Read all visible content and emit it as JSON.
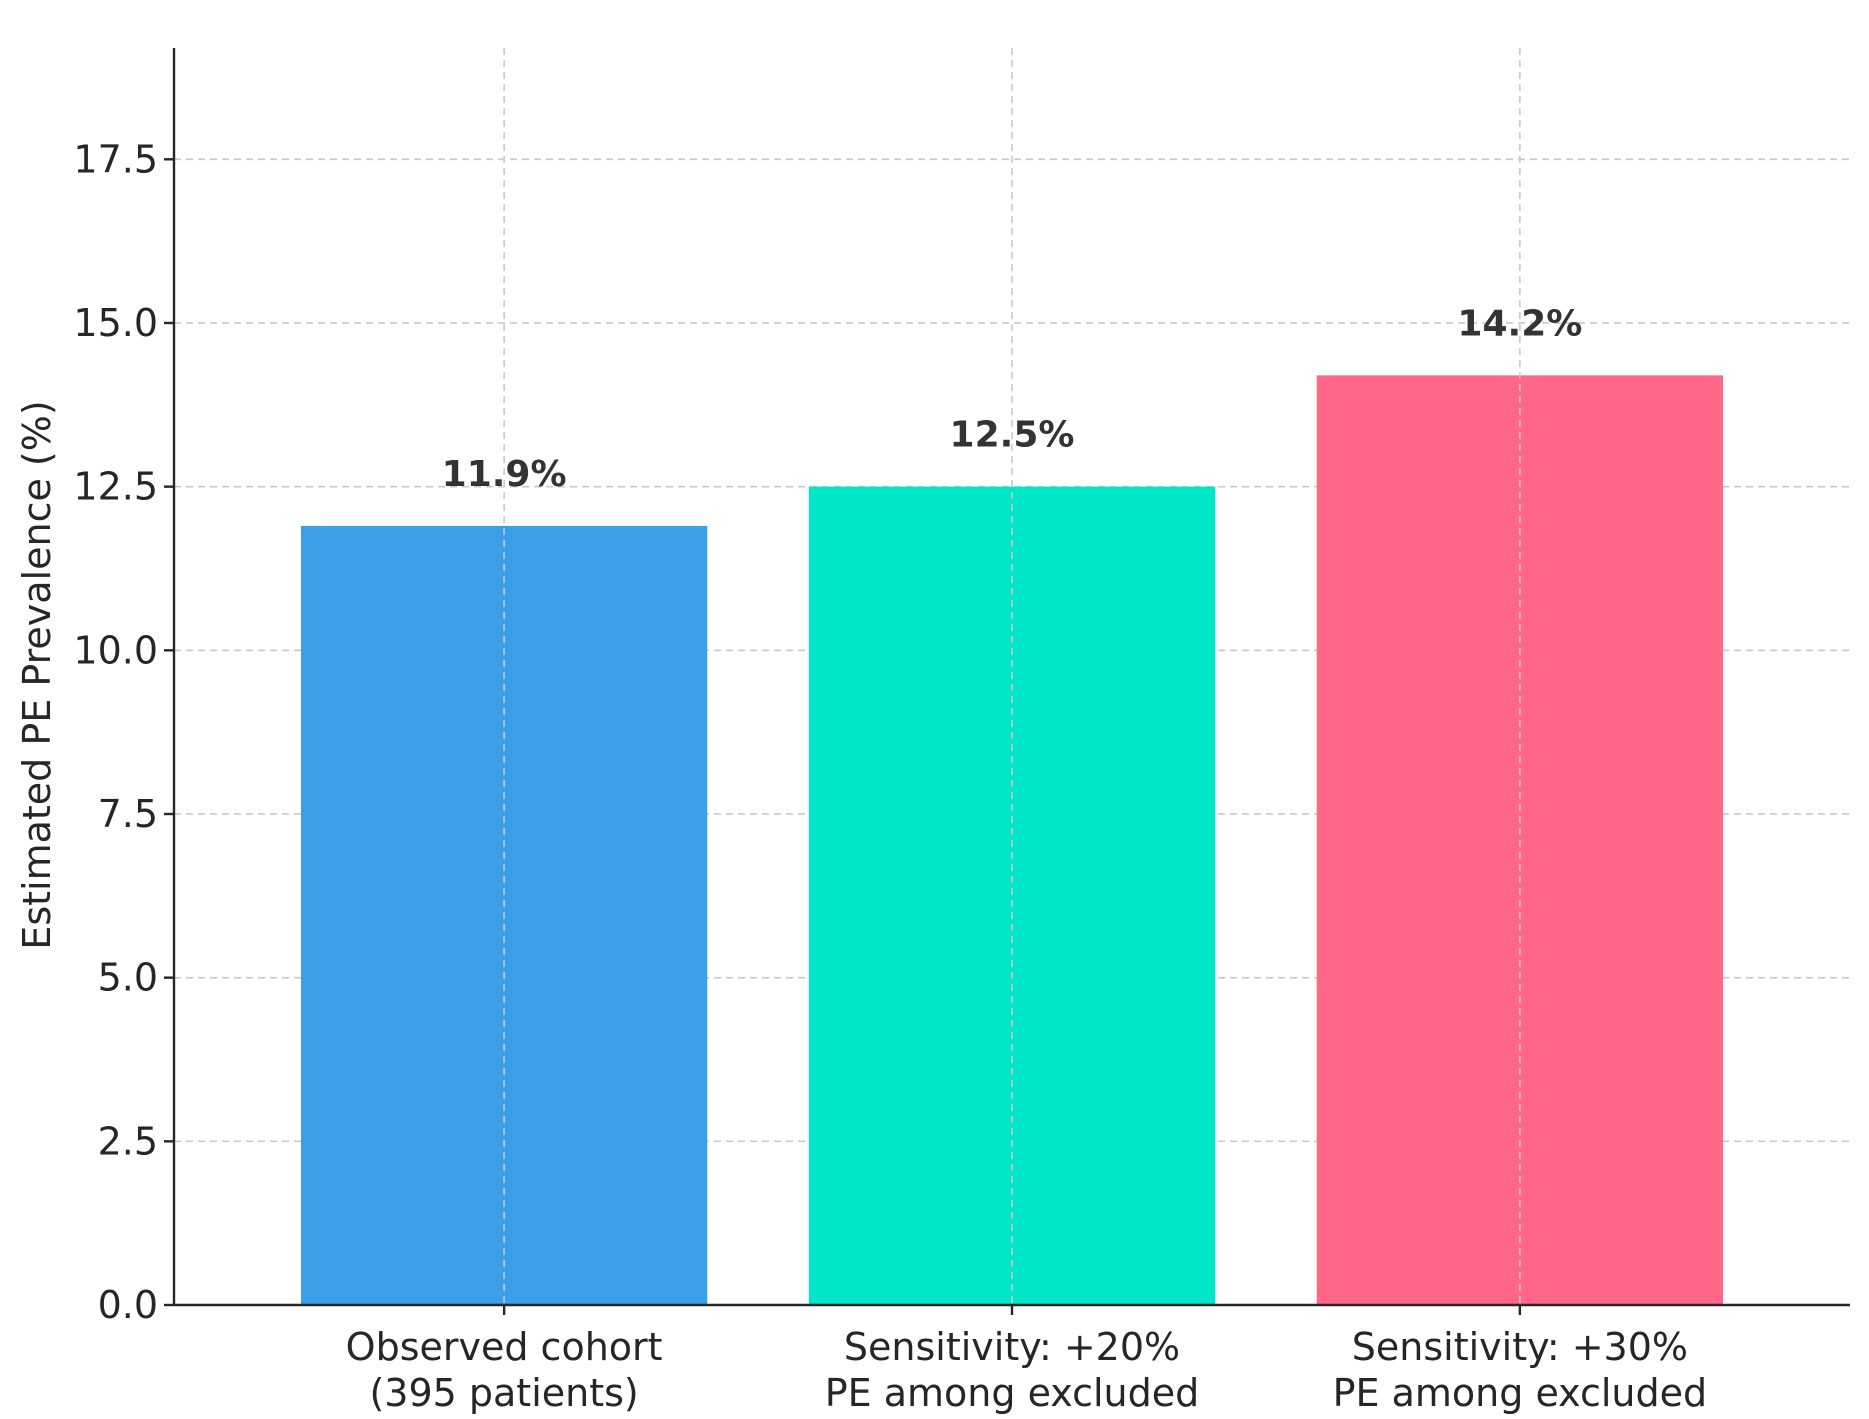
{
  "chart_data": {
    "type": "bar",
    "categories": [
      [
        "Observed cohort",
        "(395 patients)"
      ],
      [
        "Sensitivity: +20%",
        "PE among excluded"
      ],
      [
        "Sensitivity: +30%",
        "PE among excluded"
      ]
    ],
    "values": [
      11.9,
      12.5,
      14.2
    ],
    "value_labels": [
      "11.9%",
      "12.5%",
      "14.2%"
    ],
    "colors": [
      "#3a9fe6",
      "#00e6c8",
      "#ff6688"
    ],
    "title": "",
    "xlabel": "",
    "ylabel": "Estimated PE Prevalence (%)",
    "ylim": [
      0,
      19.2
    ],
    "yticks": [
      0.0,
      2.5,
      5.0,
      7.5,
      10.0,
      12.5,
      15.0,
      17.5
    ],
    "ytick_labels": [
      "0.0",
      "2.5",
      "5.0",
      "7.5",
      "10.0",
      "12.5",
      "15.0",
      "17.5"
    ],
    "grid": true,
    "legend": null
  }
}
